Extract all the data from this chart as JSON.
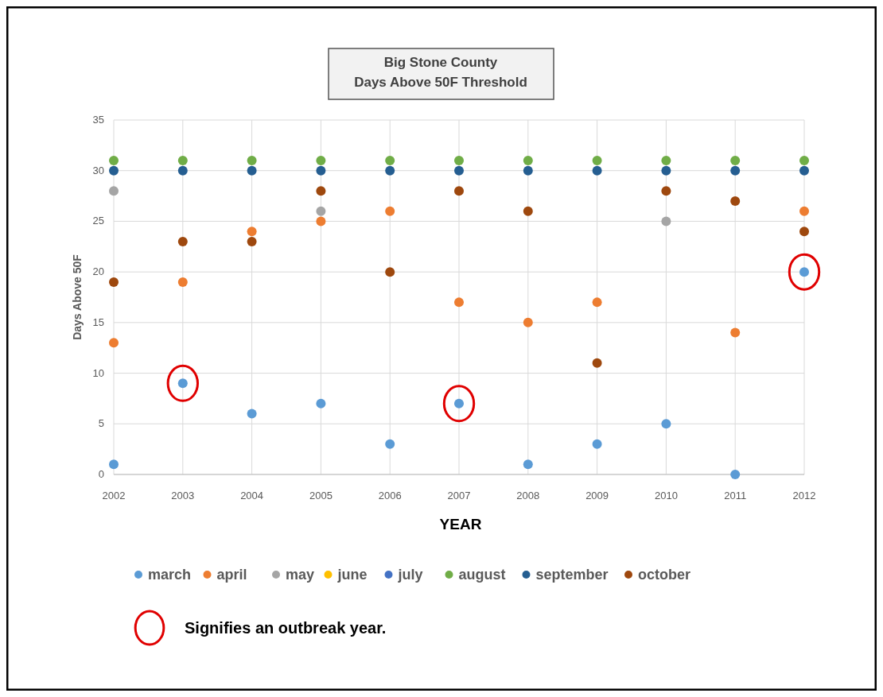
{
  "chart_data": {
    "type": "scatter",
    "title": "Big Stone County\nDays Above 50F Threshold",
    "xlabel": "YEAR",
    "ylabel": "Days Above 50F",
    "x": [
      2002,
      2003,
      2004,
      2005,
      2006,
      2007,
      2008,
      2009,
      2010,
      2011,
      2012
    ],
    "xlim": [
      2002,
      2012
    ],
    "xticks": [
      2002,
      2003,
      2004,
      2005,
      2006,
      2007,
      2008,
      2009,
      2010,
      2011,
      2012
    ],
    "ylim": [
      0,
      35
    ],
    "yticks": [
      0,
      5,
      10,
      15,
      20,
      25,
      30,
      35
    ],
    "grid": true,
    "legend": "bottom",
    "marker": "circle",
    "series": [
      {
        "name": "march",
        "color": "#5b9bd5",
        "values": [
          1,
          9,
          6,
          7,
          3,
          7,
          1,
          3,
          5,
          0,
          20
        ]
      },
      {
        "name": "april",
        "color": "#ed7d31",
        "values": [
          13,
          19,
          24,
          25,
          26,
          17,
          15,
          17,
          null,
          14,
          26
        ]
      },
      {
        "name": "may",
        "color": "#a5a5a5",
        "values": [
          28,
          null,
          null,
          26,
          null,
          null,
          null,
          null,
          25,
          null,
          null
        ]
      },
      {
        "name": "june",
        "color": "#ffc000",
        "values": [
          null,
          null,
          null,
          null,
          null,
          null,
          null,
          null,
          null,
          null,
          null
        ]
      },
      {
        "name": "july",
        "color": "#4472c4",
        "values": [
          null,
          null,
          null,
          null,
          null,
          null,
          null,
          null,
          null,
          null,
          null
        ]
      },
      {
        "name": "august",
        "color": "#70ad47",
        "values": [
          31,
          31,
          31,
          31,
          31,
          31,
          31,
          31,
          31,
          31,
          31
        ]
      },
      {
        "name": "september",
        "color": "#255e91",
        "values": [
          30,
          30,
          30,
          30,
          30,
          30,
          30,
          30,
          30,
          30,
          30
        ]
      },
      {
        "name": "october",
        "color": "#9e480e",
        "values": [
          19,
          23,
          23,
          28,
          20,
          28,
          26,
          11,
          28,
          27,
          24
        ]
      },
      {
        "name": "Signifies an outbreak year.",
        "color": "#e00000",
        "marker": "circle",
        "values": [
          null,
          9,
          null,
          null,
          null,
          7,
          null,
          null,
          null,
          null,
          20
        ]
      }
    ]
  }
}
